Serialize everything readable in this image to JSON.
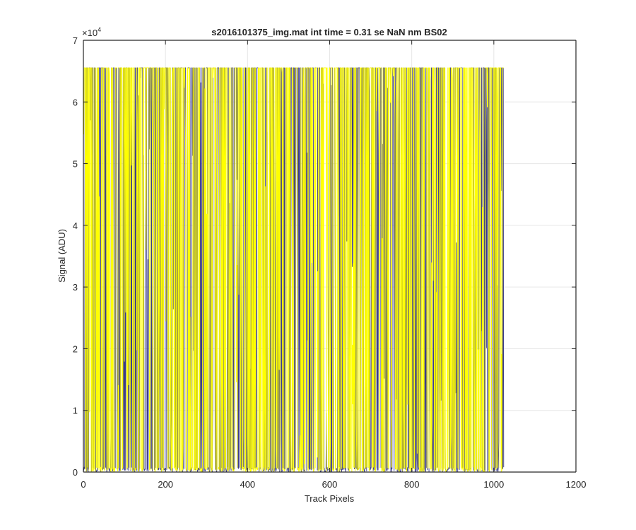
{
  "chart_data": {
    "type": "line",
    "title": "s2016101375_img.mat int time = 0.31 se  NaN nm BS02",
    "xlabel": "Track Pixels",
    "ylabel": "Signal (ADU)",
    "xlim": [
      0,
      1200
    ],
    "ylim": [
      0,
      70000
    ],
    "xticks": [
      0,
      200,
      400,
      600,
      800,
      1000,
      1200
    ],
    "xtick_labels": [
      "0",
      "200",
      "400",
      "600",
      "800",
      "1000",
      "1200"
    ],
    "yticks": [
      0,
      10000,
      20000,
      30000,
      40000,
      50000,
      60000,
      70000
    ],
    "ytick_labels": [
      "0",
      "1",
      "2",
      "3",
      "4",
      "5",
      "6",
      "7"
    ],
    "y_exponent_label": "×10",
    "y_exponent_power": "4",
    "grid": true,
    "series": [
      {
        "color": "#3a3a8a",
        "description_values": {
          "x_start": 1,
          "x_end": 1024,
          "y_min": 0,
          "y_max": 65535
        }
      },
      {
        "color": "#ffff00",
        "description_values": {
          "x_start": 1,
          "x_end": 1024,
          "y_min": 0,
          "y_max": 65535
        }
      }
    ]
  }
}
